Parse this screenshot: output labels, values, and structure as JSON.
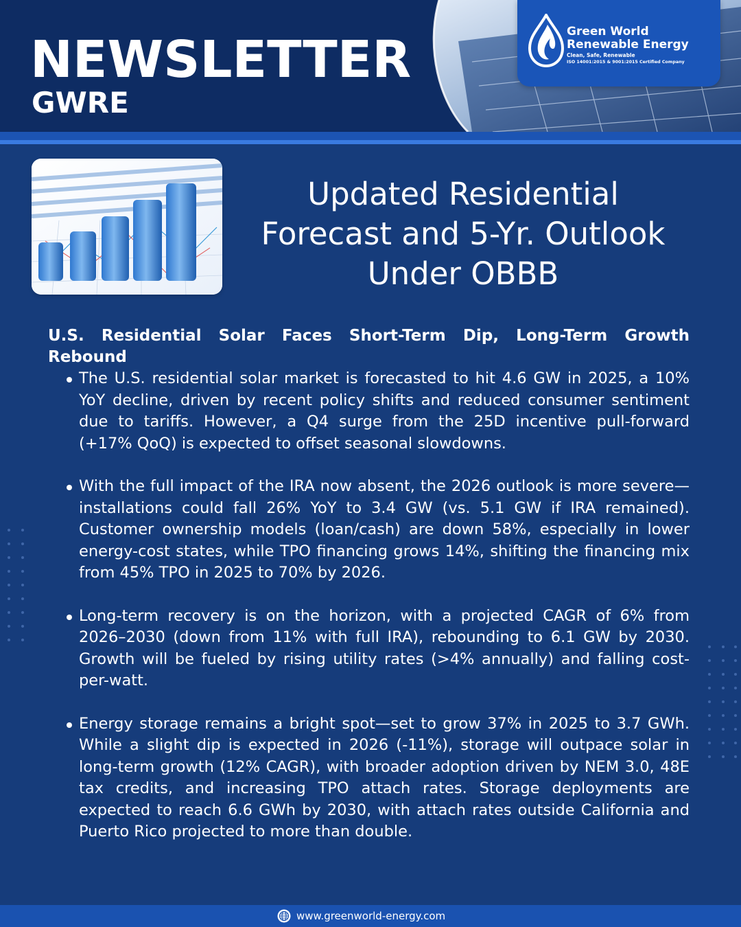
{
  "header": {
    "title": "NEWSLETTER",
    "subtitle": "GWRE"
  },
  "logo": {
    "icon": "flame-drop-icon",
    "name_line1": "Green World",
    "name_line2": "Renewable Energy",
    "tagline": "Clean, Safe, Renewable",
    "certification": "ISO 14001:2015 & 9001:2015 Certified Company"
  },
  "hero": {
    "image": "bar-chart-illustration",
    "headline_line1": "Updated Residential",
    "headline_line2": "Forecast and 5-Yr. Outlook",
    "headline_line3": "Under OBBB"
  },
  "article": {
    "heading": "U.S. Residential Solar Faces Short-Term Dip, Long-Term Growth Rebound",
    "bullets": [
      "The U.S. residential solar market is forecasted to hit 4.6 GW in 2025, a 10% YoY decline, driven by recent policy shifts and reduced consumer sentiment due to tariffs. However, a Q4 surge from the 25D incentive pull-forward (+17% QoQ) is expected to offset seasonal slowdowns.",
      "With the full impact of the IRA now absent, the 2026 outlook is more severe—installations could fall 26% YoY to 3.4 GW (vs. 5.1 GW if IRA remained). Customer ownership models (loan/cash) are down 58%, especially in lower energy-cost states, while TPO financing grows 14%, shifting the financing mix from 45% TPO in 2025 to 70% by 2026.",
      "Long-term recovery is on the horizon, with a projected CAGR of 6% from 2026–2030 (down from 11% with full IRA), rebounding to 6.1 GW by 2030. Growth will be fueled by rising utility rates (>4% annually) and falling cost-per-watt.",
      "Energy storage remains a bright spot—set to grow 37% in 2025 to 3.7 GWh. While a slight dip is expected in 2026 (-11%), storage will outpace solar in long-term growth (12% CAGR), with broader adoption driven by NEM 3.0, 48E tax credits, and increasing TPO attach rates. Storage deployments are expected to reach 6.6 GWh by 2030, with attach rates outside California and Puerto Rico projected to more than double."
    ]
  },
  "footer": {
    "icon": "globe-icon",
    "url": "www.greenworld-energy.com"
  },
  "colors": {
    "background": "#163c7b",
    "header_band": "#0e2c63",
    "accent_blue": "#1c54b3",
    "accent_light": "#3a7be0",
    "text": "#ffffff"
  }
}
